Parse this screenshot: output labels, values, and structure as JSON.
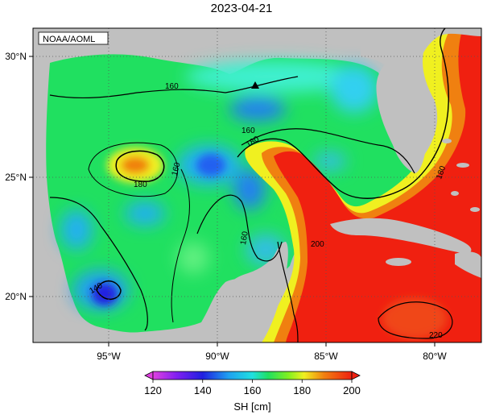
{
  "title": "2023-04-21",
  "credit": "NOAA/AOML",
  "x_ticks": [
    "95°W",
    "90°W",
    "85°W",
    "80°W"
  ],
  "y_ticks": [
    "30°N",
    "25°N",
    "20°N"
  ],
  "contour_labels": [
    "160",
    "160",
    "160",
    "160",
    "180",
    "180",
    "180",
    "140",
    "200",
    "220"
  ],
  "colorbar": {
    "ticks": [
      "120",
      "140",
      "160",
      "180",
      "200"
    ],
    "min": 120,
    "max": 200,
    "label": "SH [cm]"
  },
  "marker": "triangle-marker",
  "colors": {
    "land": "#c0c0c0",
    "low": "#2020e0",
    "mid": "#20e060",
    "high": "#f02010"
  }
}
